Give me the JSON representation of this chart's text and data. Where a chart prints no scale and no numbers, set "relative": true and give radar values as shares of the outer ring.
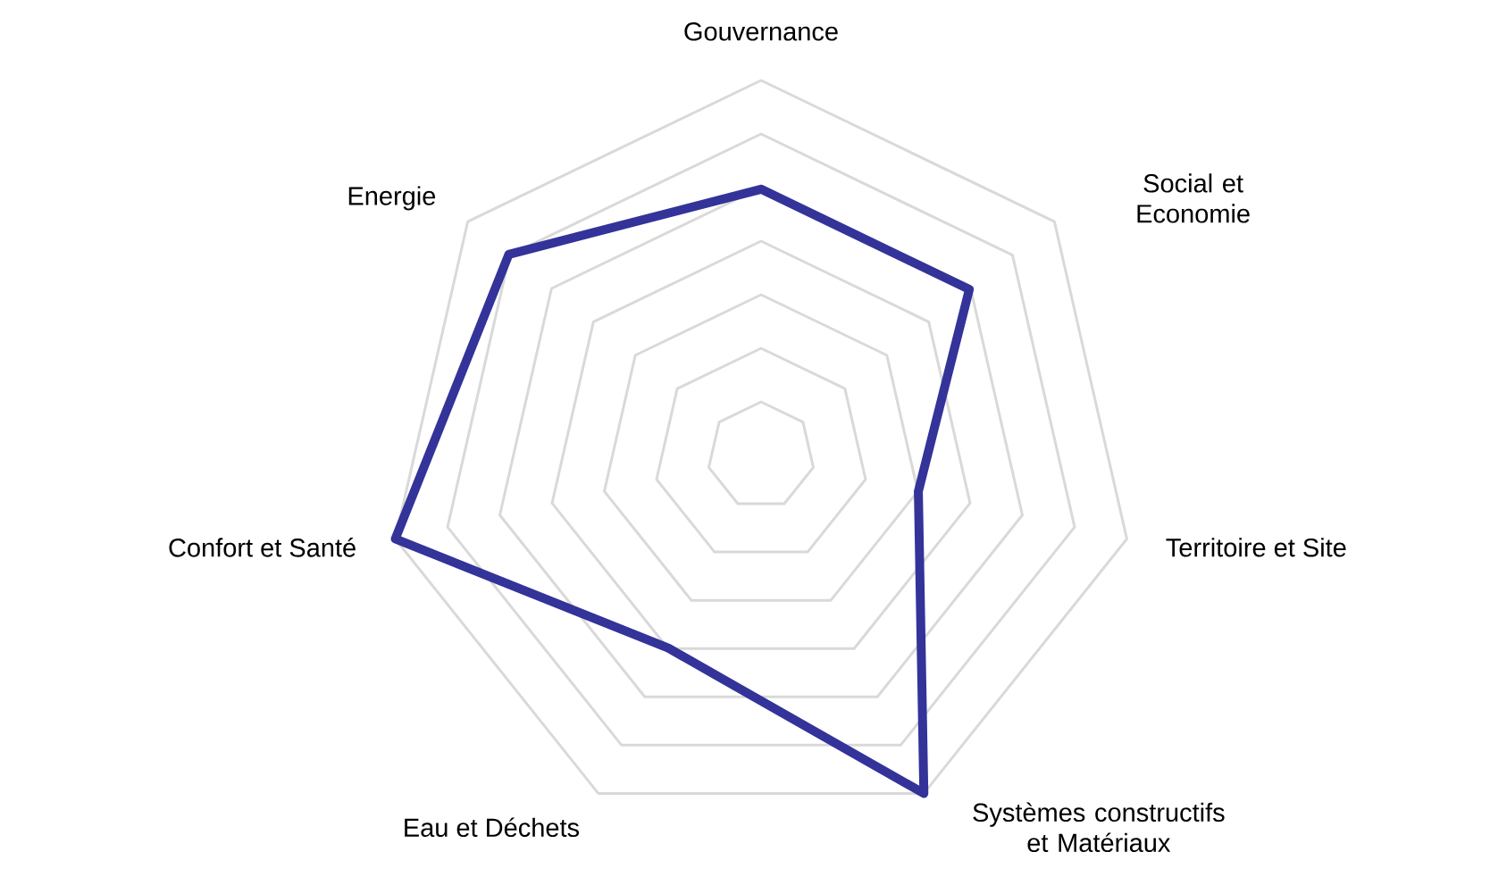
{
  "chart_data": {
    "type": "radar",
    "relative": true,
    "grid": true,
    "categories": [
      "Gouvernance",
      "Social et Economie",
      "Territoire et Site",
      "Systèmes constructifs et Matériaux",
      "Eau et Déchets",
      "Confort et Santé",
      "Energie"
    ],
    "series": [
      {
        "color": "#333399",
        "values": [
          0.71,
          0.71,
          0.43,
          1,
          0.57,
          1,
          0.86
        ]
      }
    ]
  }
}
